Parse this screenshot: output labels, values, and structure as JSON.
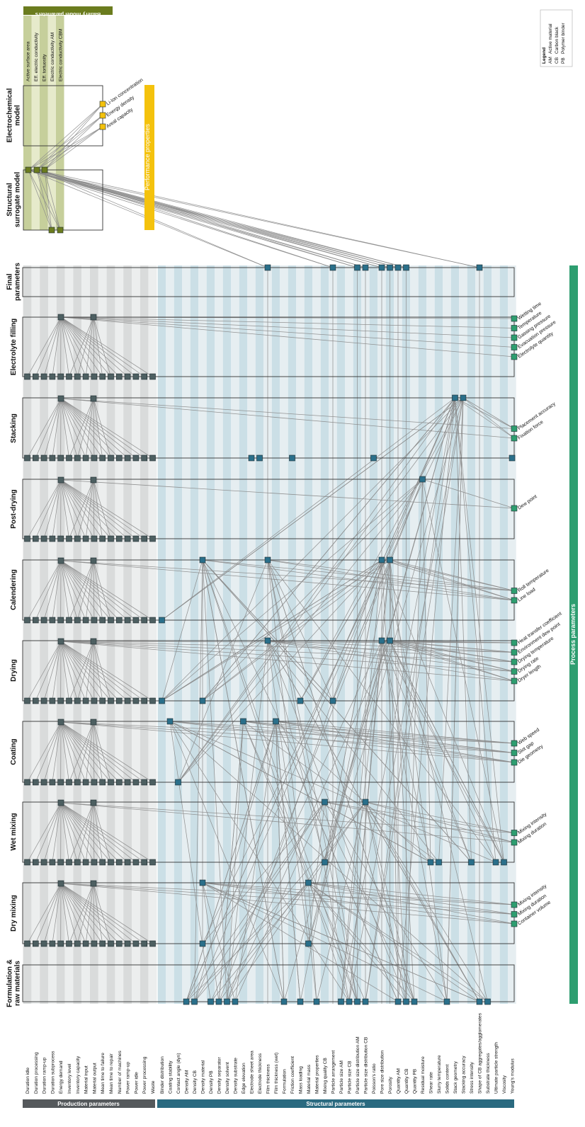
{
  "steps": [
    "Formulation &\nraw materials",
    "Dry mixing",
    "Wet mixing",
    "Coating",
    "Drying",
    "Calendering",
    "Post-drying",
    "Stacking",
    "Electrolyte filling",
    "Final\nparameters"
  ],
  "models": [
    "Structural\nsurrogate model",
    "Electrochemical\nmodel"
  ],
  "production_header": "Production parameters",
  "structural_header": "Structural parameters",
  "process_header": "Process parameters",
  "battery_header": "Battery model parameters",
  "performance_header": "Performance properties",
  "production_parameters": [
    "Duration idle",
    "Duration processing",
    "Duration ramp-up",
    "Duration subprocess",
    "Energy demand",
    "Inventory level",
    "Inventory capacity",
    "Material input",
    "Material output",
    "Mean time to failure",
    "Mean time to repair",
    "Number of machines",
    "Power ramp-up",
    "Power idle",
    "Power processing",
    "Waste"
  ],
  "structural_parameters": [
    "Binder distribution",
    "Coating stability",
    "Contact angle (dyn)",
    "Density AM",
    "Density CB",
    "Density material",
    "Density PB",
    "Density separator",
    "Density solvent",
    "Density substrate",
    "Edge elevation",
    "Electrode sheet area",
    "Electrode thickness",
    "Film thickness",
    "Film thickness (wet)",
    "Formulation",
    "Friction coefficient",
    "Mass loading",
    "Material mass",
    "Material properties",
    "Mixing quality CB",
    "Particle arrangement",
    "Particle size AM",
    "Particle size CB",
    "Particle size distribution AM",
    "Particle size distribution CB",
    "Poisson's ratio",
    "Pore size distribution",
    "Porosity",
    "Quantity AM",
    "Quantity CB",
    "Quantity PB",
    "Residual moisture",
    "Shear rate",
    "Slurry temperature",
    "Solids content",
    "Stack geometry",
    "Stacking accuracy",
    "Stress intensity",
    "Shape of CB aggregates/agglomerates",
    "Substrate thickness",
    "Ultimate particle strength",
    "Viscosity",
    "Young's modulus"
  ],
  "battery_parameters": [
    "Active surface area",
    "Eff. electric conductivity",
    "Eff. tortuosity",
    "Electric conductivity AM",
    "Electric conductivity CBM"
  ],
  "performance_outputs": [
    "Li-Ion concentration",
    "Energy density",
    "Areal capacity"
  ],
  "process_params": {
    "Dry mixing": [
      "Mixing intensity",
      "Mixing duration",
      "Container volume"
    ],
    "Wet mixing": [
      "Mixing intensity",
      "Mixing duration"
    ],
    "Coating": [
      "Web speed",
      "Slot gap",
      "Die geometry"
    ],
    "Drying": [
      "Heat transfer coefficient",
      "Environment dew point",
      "Drying temperature",
      "Drying rate",
      "Dryer length"
    ],
    "Calendering": [
      "Roll temperature",
      "Line load"
    ],
    "Post-drying": [
      "Dew point"
    ],
    "Stacking": [
      "Placement accuracy",
      "Fixation force"
    ],
    "Electrolyte filling": [
      "Wetting time",
      "Temperature",
      "Gassing pressure",
      "Evacuation pressure",
      "Electrolyte quantity"
    ]
  },
  "legend": {
    "title": "Legend",
    "items": [
      {
        "abbr": "AM",
        "text": "Active material"
      },
      {
        "abbr": "CB",
        "text": "Carbon black"
      },
      {
        "abbr": "PB",
        "text": "Polymer binder"
      }
    ]
  },
  "colors": {
    "production_node": "#4d5f61",
    "structural_node": "#2a6f8a",
    "process_node": "#2e9e70",
    "model_node": "#6b7c1e",
    "output_node": "#f4c20d",
    "production_header": "#55595c",
    "structural_header": "#2a6a80",
    "process_bar": "#2e9e70",
    "battery_header": "#6b7c1e",
    "performance_bar": "#f4c20d",
    "edge": "#8a8a8a"
  }
}
